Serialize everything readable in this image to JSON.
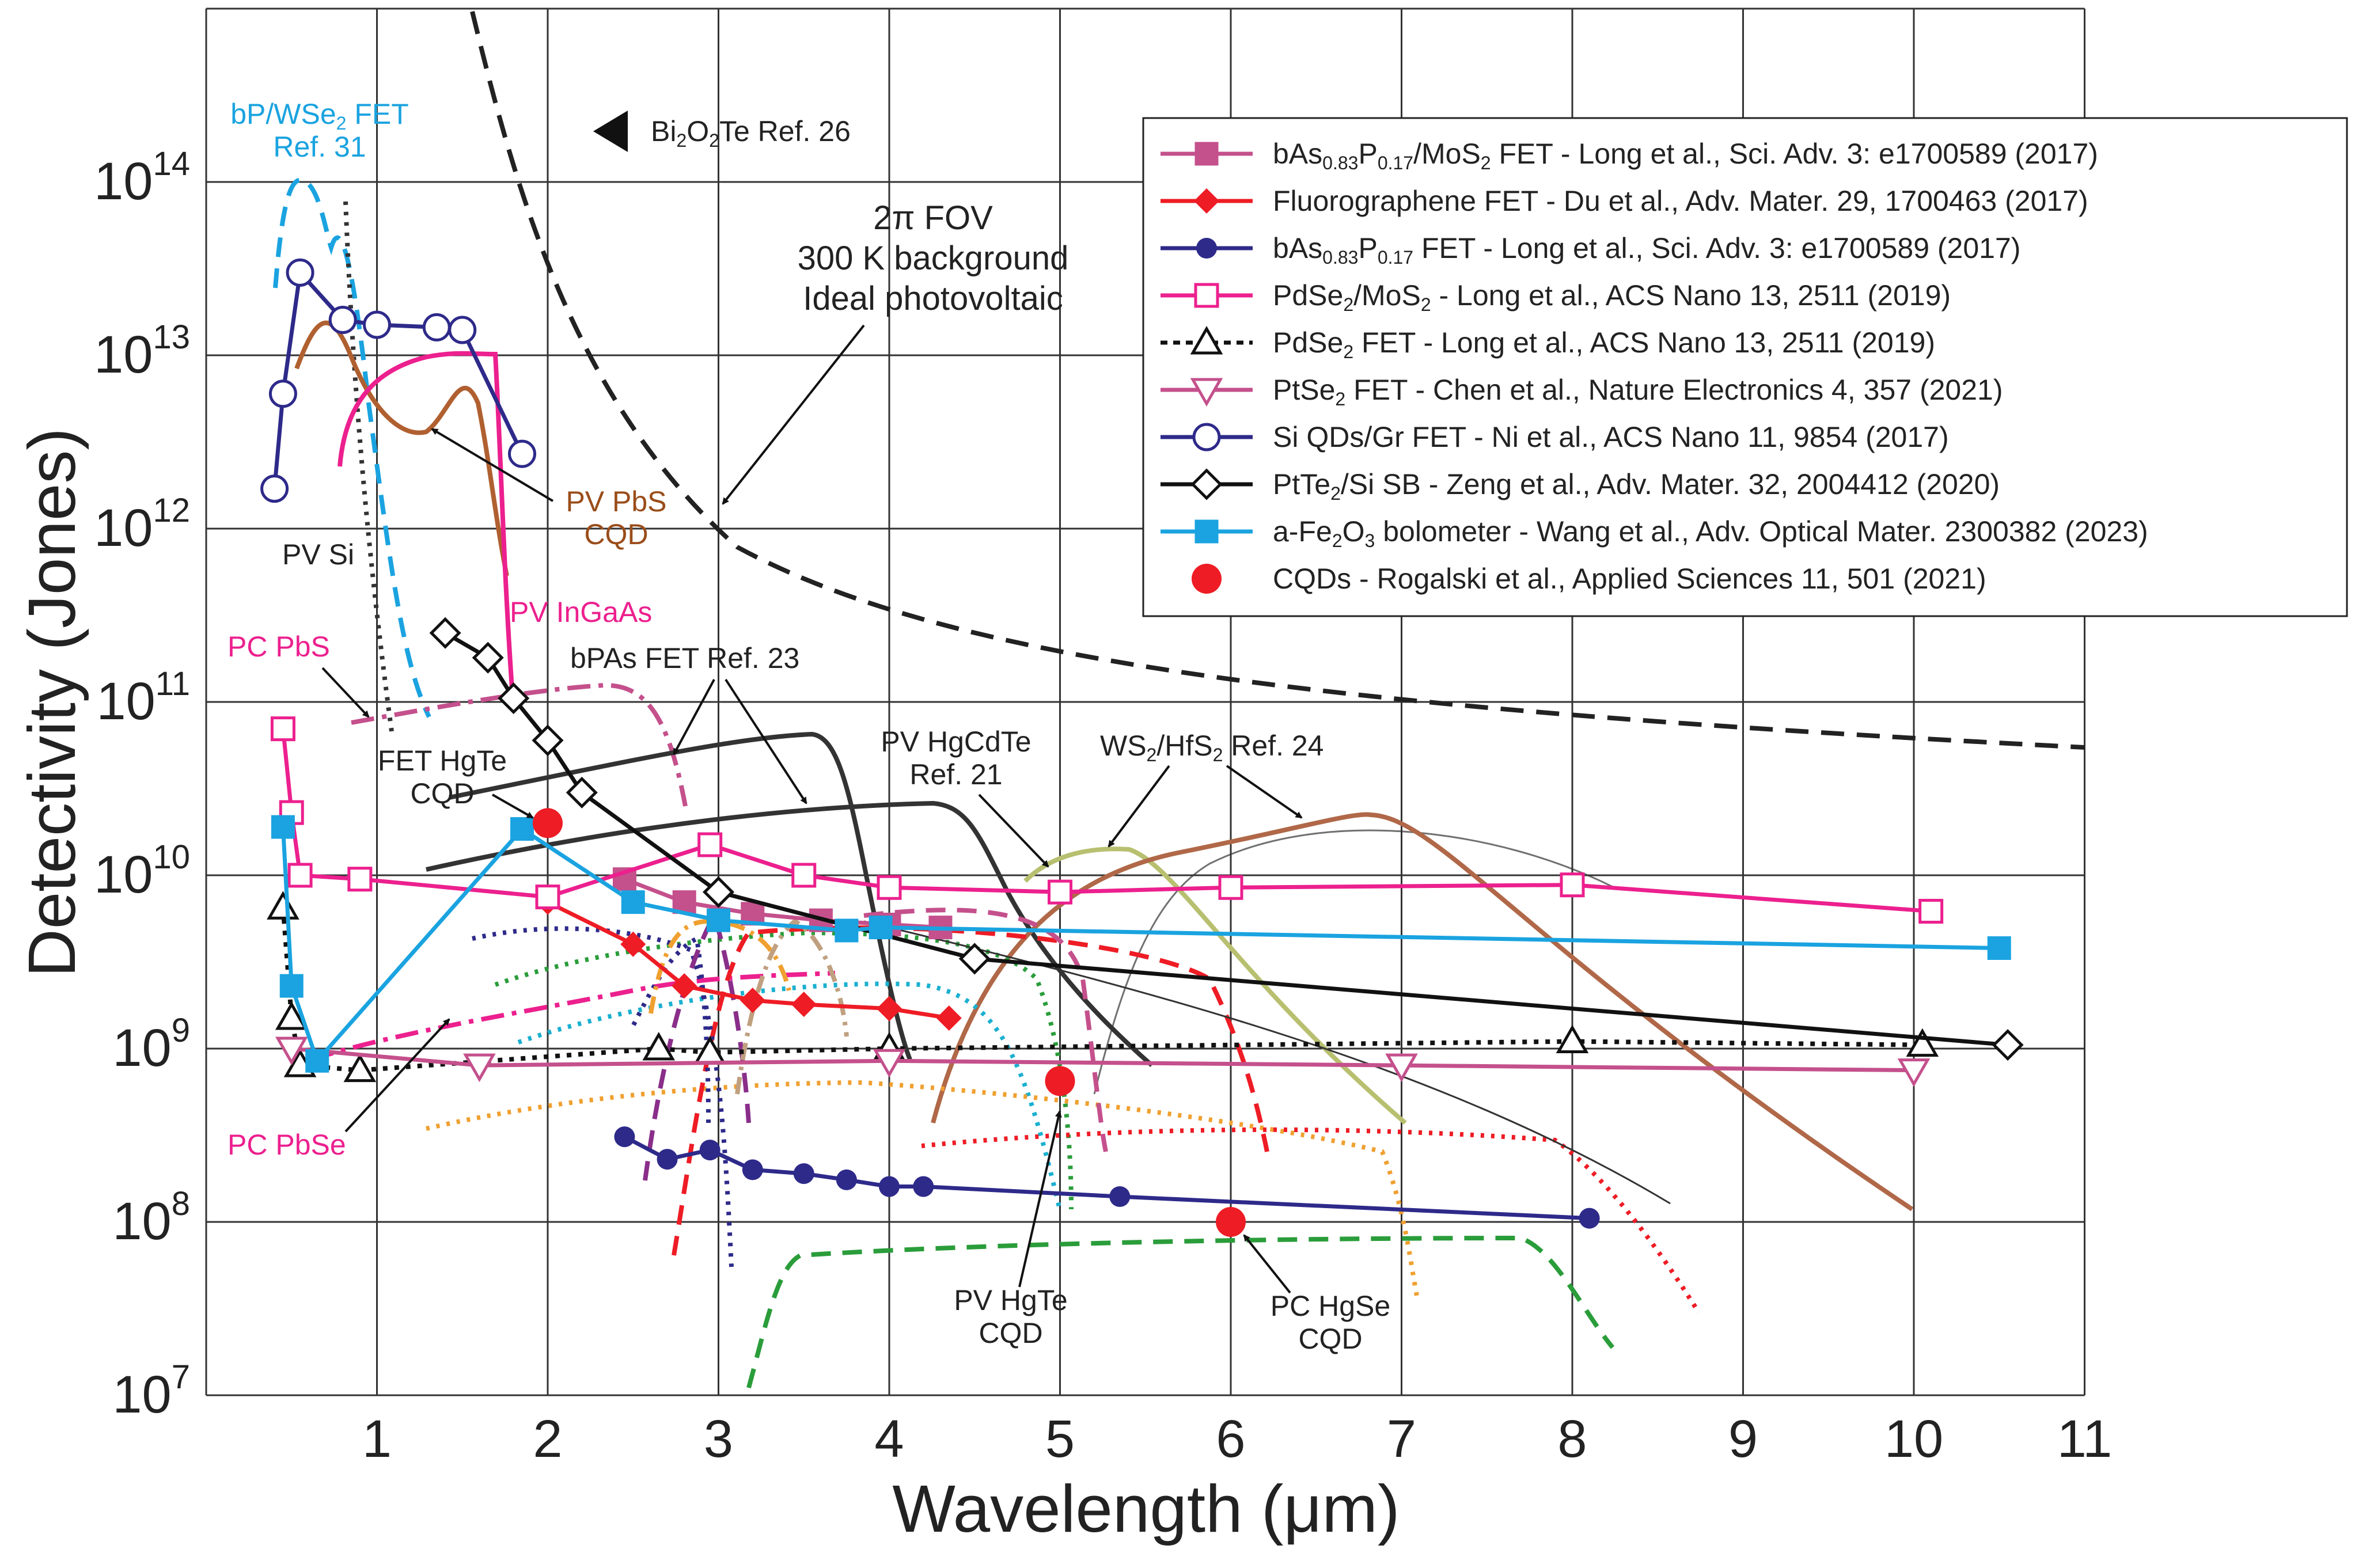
{
  "chart_data": {
    "type": "line",
    "title": "",
    "xlabel": "Wavelength (μm)",
    "ylabel": "Detectivity (Jones)",
    "xlim": [
      0,
      11
    ],
    "ylim": [
      10000000.0,
      1000000000000000.0
    ],
    "yscale": "log",
    "x_ticks": [
      "1",
      "2",
      "3",
      "4",
      "5",
      "6",
      "7",
      "8",
      "9",
      "10",
      "11"
    ],
    "y_ticks": [
      {
        "base": "10",
        "exp": "7",
        "color": "#222222"
      },
      {
        "base": "10",
        "exp": "8",
        "color": "#6f6cf0"
      },
      {
        "base": "10",
        "exp": "9",
        "color": "#222222"
      },
      {
        "base": "10",
        "exp": "10",
        "color": "#222222"
      },
      {
        "base": "10",
        "exp": "11",
        "color": "#222222"
      },
      {
        "base": "10",
        "exp": "12",
        "color": "#222222"
      },
      {
        "base": "10",
        "exp": "13",
        "color": "#222222"
      },
      {
        "base": "10",
        "exp": "14",
        "color": "#222222"
      }
    ],
    "grid": true,
    "legend_position": "top-right",
    "series": [
      {
        "name": "bAs0.83P0.17/MoS2 FET - Long et al., Sci. Adv. 3: e1700589 (2017)",
        "color": "#c4508c",
        "marker": "square-filled",
        "style": "solid",
        "x": [
          2.45,
          2.8,
          3.2,
          3.6,
          4.0,
          4.3
        ],
        "y": [
          9500000000.0,
          7000000000.0,
          6000000000.0,
          5500000000.0,
          5200000000.0,
          5000000000.0
        ]
      },
      {
        "name": "Fluorographene FET - Du et al., Adv. Mater. 29, 1700463 (2017)",
        "color": "#ee1c25",
        "marker": "diamond-filled",
        "style": "solid",
        "x": [
          2.0,
          2.5,
          2.8,
          3.2,
          3.5,
          4.0,
          4.35
        ],
        "y": [
          7000000000.0,
          4000000000.0,
          2300000000.0,
          1900000000.0,
          1800000000.0,
          1700000000.0,
          1500000000.0
        ]
      },
      {
        "name": "bAs0.83P0.17 FET - Long et al., Sci. Adv. 3: e1700589 (2017)",
        "color": "#2e2a8a",
        "marker": "circle-filled",
        "style": "solid",
        "x": [
          2.45,
          2.7,
          2.95,
          3.2,
          3.5,
          3.75,
          4.0,
          4.2,
          5.35,
          8.1
        ],
        "y": [
          310000000.0,
          230000000.0,
          260000000.0,
          200000000.0,
          190000000.0,
          175000000.0,
          160000000.0,
          160000000.0,
          140000000.0,
          105000000.0
        ]
      },
      {
        "name": "PdSe2/MoS2 - Long et al., ACS Nano 13, 2511 (2019)",
        "color": "#ec208e",
        "marker": "square-open",
        "style": "solid",
        "x": [
          0.45,
          0.5,
          0.55,
          0.9,
          2.0,
          2.95,
          3.5,
          4.0,
          5.0,
          6.0,
          8.0,
          10.1
        ],
        "y": [
          70000000000.0,
          23000000000.0,
          10000000000.0,
          9500000000.0,
          7500000000.0,
          15000000000.0,
          10000000000.0,
          8500000000.0,
          8000000000.0,
          8500000000.0,
          8800000000.0,
          6200000000.0
        ]
      },
      {
        "name": "PdSe2 FET - Long et al., ACS Nano 13, 2511 (2019)",
        "color": "#111111",
        "marker": "triangle-up-open",
        "style": "dotted",
        "x": [
          0.45,
          0.5,
          0.55,
          0.9,
          2.65,
          2.95,
          4.0,
          8.0,
          10.05
        ],
        "y": [
          6500000000.0,
          1500000000.0,
          800000000.0,
          750000000.0,
          1000000000.0,
          950000000.0,
          1000000000.0,
          1100000000.0,
          1050000000.0
        ]
      },
      {
        "name": "PtSe2 FET - Chen et al., Nature Electronics 4, 357 (2021)",
        "color": "#c4508c",
        "marker": "triangle-down-open",
        "style": "solid",
        "x": [
          0.5,
          1.6,
          4.0,
          7.0,
          10.0
        ],
        "y": [
          1000000000.0,
          800000000.0,
          850000000.0,
          800000000.0,
          750000000.0
        ]
      },
      {
        "name": "Si QDs/Gr FET - Ni et al., ACS Nano 11, 9854 (2017)",
        "color": "#2e2a8a",
        "marker": "circle-open",
        "style": "solid",
        "x": [
          0.4,
          0.45,
          0.55,
          0.8,
          1.0,
          1.35,
          1.5,
          1.85
        ],
        "y": [
          1700000000000.0,
          6000000000000.0,
          30000000000000.0,
          16000000000000.0,
          15000000000000.0,
          14500000000000.0,
          14000000000000.0,
          2700000000000.0
        ]
      },
      {
        "name": "PtTe2/Si SB - Zeng et al., Adv. Mater. 32, 2004412 (2020)",
        "color": "#111111",
        "marker": "diamond-open",
        "style": "solid",
        "x": [
          1.4,
          1.65,
          1.8,
          2.0,
          2.2,
          3.0,
          4.5,
          10.55
        ],
        "y": [
          250000000000.0,
          180000000000.0,
          105000000000.0,
          60000000000.0,
          30000000000.0,
          8000000000.0,
          3300000000.0,
          1050000000.0
        ]
      },
      {
        "name": "a-Fe2O3 bolometer - Wang et al., Adv. Optical Mater. 2300382 (2023)",
        "color": "#1aa3e0",
        "marker": "square-filled",
        "style": "solid",
        "x": [
          0.45,
          0.5,
          0.65,
          1.85,
          2.5,
          3.0,
          3.75,
          3.95,
          10.5
        ],
        "y": [
          19000000000.0,
          2300000000.0,
          850000000.0,
          18500000000.0,
          7000000000.0,
          5500000000.0,
          4800000000.0,
          5000000000.0,
          3800000000.0
        ]
      },
      {
        "name": "CQDs - Rogalski et al., Applied Sciences 11, 501 (2021)",
        "color": "#ee1c25",
        "marker": "circle-filled-big",
        "style": "none",
        "x": [
          2.0,
          5.0,
          6.0
        ],
        "y": [
          20000000000.0,
          650000000.0,
          100000000.0
        ]
      }
    ]
  },
  "legend": [
    {
      "pre": "bAs",
      "sub1": "0.83",
      "mid": "P",
      "sub2": "0.17",
      "post": "/MoS",
      "sub3": "2",
      "tail": " FET - Long et al., Sci. Adv. 3: e1700589 (2017)"
    },
    {
      "pre": "Fluorographene FET - Du et al., Adv. Mater. 29, 1700463 (2017)"
    },
    {
      "pre": "bAs",
      "sub1": "0.83",
      "mid": "P",
      "sub2": "0.17",
      "post": " FET - Long et al., Sci. Adv. 3: e1700589 (2017)"
    },
    {
      "pre": "PdSe",
      "sub1": "2",
      "mid": "/MoS",
      "sub2": "2",
      "post": " - Long et al., ACS Nano 13, 2511 (2019)"
    },
    {
      "pre": "PdSe",
      "sub1": "2",
      "mid": " FET - Long et al., ACS Nano 13, 2511 (2019)"
    },
    {
      "pre": "PtSe",
      "sub1": "2",
      "mid": " FET - Chen et al., Nature Electronics 4, 357 (2021)"
    },
    {
      "pre": "Si QDs/Gr FET - Ni et al., ACS Nano 11, 9854 (2017)"
    },
    {
      "pre": "PtTe",
      "sub1": "2",
      "mid": "/Si SB - Zeng et al., Adv. Mater. 32, 2004412 (2020)"
    },
    {
      "pre": "a-Fe",
      "sub1": "2",
      "mid": "O",
      "sub2": "3",
      "post": " bolometer - Wang et al., Adv. Optical Mater. 2300382 (2023)"
    },
    {
      "pre": "CQDs - Rogalski et al., Applied Sciences 11, 501 (2021)"
    }
  ],
  "annotations": {
    "bp_wse2_1": "bP/WSe",
    "bp_wse2_sub": "2",
    "bp_wse2_2": " FET",
    "bp_wse2_ref": "Ref. 31",
    "bi2o2te_a": "Bi",
    "bi2o2te_s1": "2",
    "bi2o2te_b": "O",
    "bi2o2te_s2": "2",
    "bi2o2te_c": "Te Ref. 26",
    "fov1": "2π FOV",
    "fov2": "300 K background",
    "fov3": "Ideal photovoltaic",
    "pv_pbs1": "PV PbS",
    "pv_pbs2": "CQD",
    "pv_si": "PV Si",
    "pv_ingaas": "PV InGaAs",
    "pc_pbs": "PC PbS",
    "bpas": "bPAs FET Ref. 23",
    "fet_hgte1": "FET HgTe",
    "fet_hgte2": "CQD",
    "pv_hgcdte1": "PV HgCdTe",
    "pv_hgcdte2": "Ref. 21",
    "ws2_a": "WS",
    "ws2_s1": "2",
    "ws2_b": "/HfS",
    "ws2_s2": "2",
    "ws2_c": " Ref. 24",
    "pc_pbse": "PC PbSe",
    "pv_hgte1": "PV HgTe",
    "pv_hgte2": "CQD",
    "pc_hgse1": "PC HgSe",
    "pc_hgse2": "CQD"
  }
}
